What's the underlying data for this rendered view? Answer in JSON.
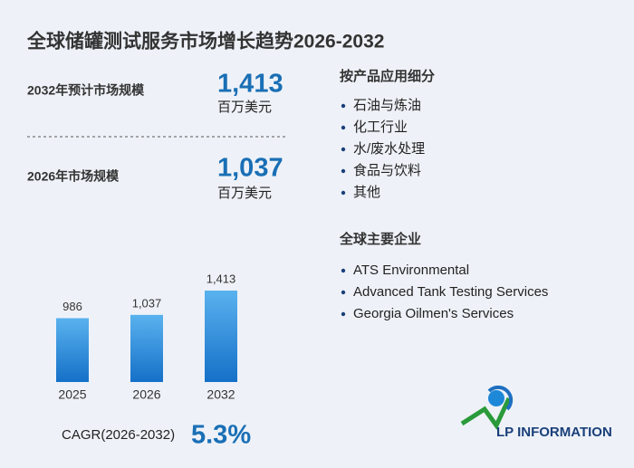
{
  "title": "全球储罐测试服务市场增长趋势2026-2032",
  "stats": [
    {
      "label": "2032年预计市场规模",
      "value": "1,413",
      "unit": "百万美元"
    },
    {
      "label": "2026年市场规模",
      "value": "1,037",
      "unit": "百万美元"
    }
  ],
  "chart_data": {
    "type": "bar",
    "categories": [
      "2025",
      "2026",
      "2032"
    ],
    "values": [
      986,
      1037,
      1413
    ],
    "value_labels": [
      "986",
      "1,037",
      "1,413"
    ],
    "color": "#2a86d8"
  },
  "cagr": {
    "label": "CAGR(2026-2032)",
    "value": "5.3%"
  },
  "segments": {
    "title": "按产品应用细分",
    "items": [
      "石油与炼油",
      "化工行业",
      "水/废水处理",
      "食品与饮料",
      "其他"
    ]
  },
  "companies": {
    "title": "全球主要企业",
    "items": [
      "ATS Environmental",
      "Advanced Tank Testing Services",
      "Georgia Oilmen's Services"
    ]
  },
  "logo": "LP INFORMATION"
}
